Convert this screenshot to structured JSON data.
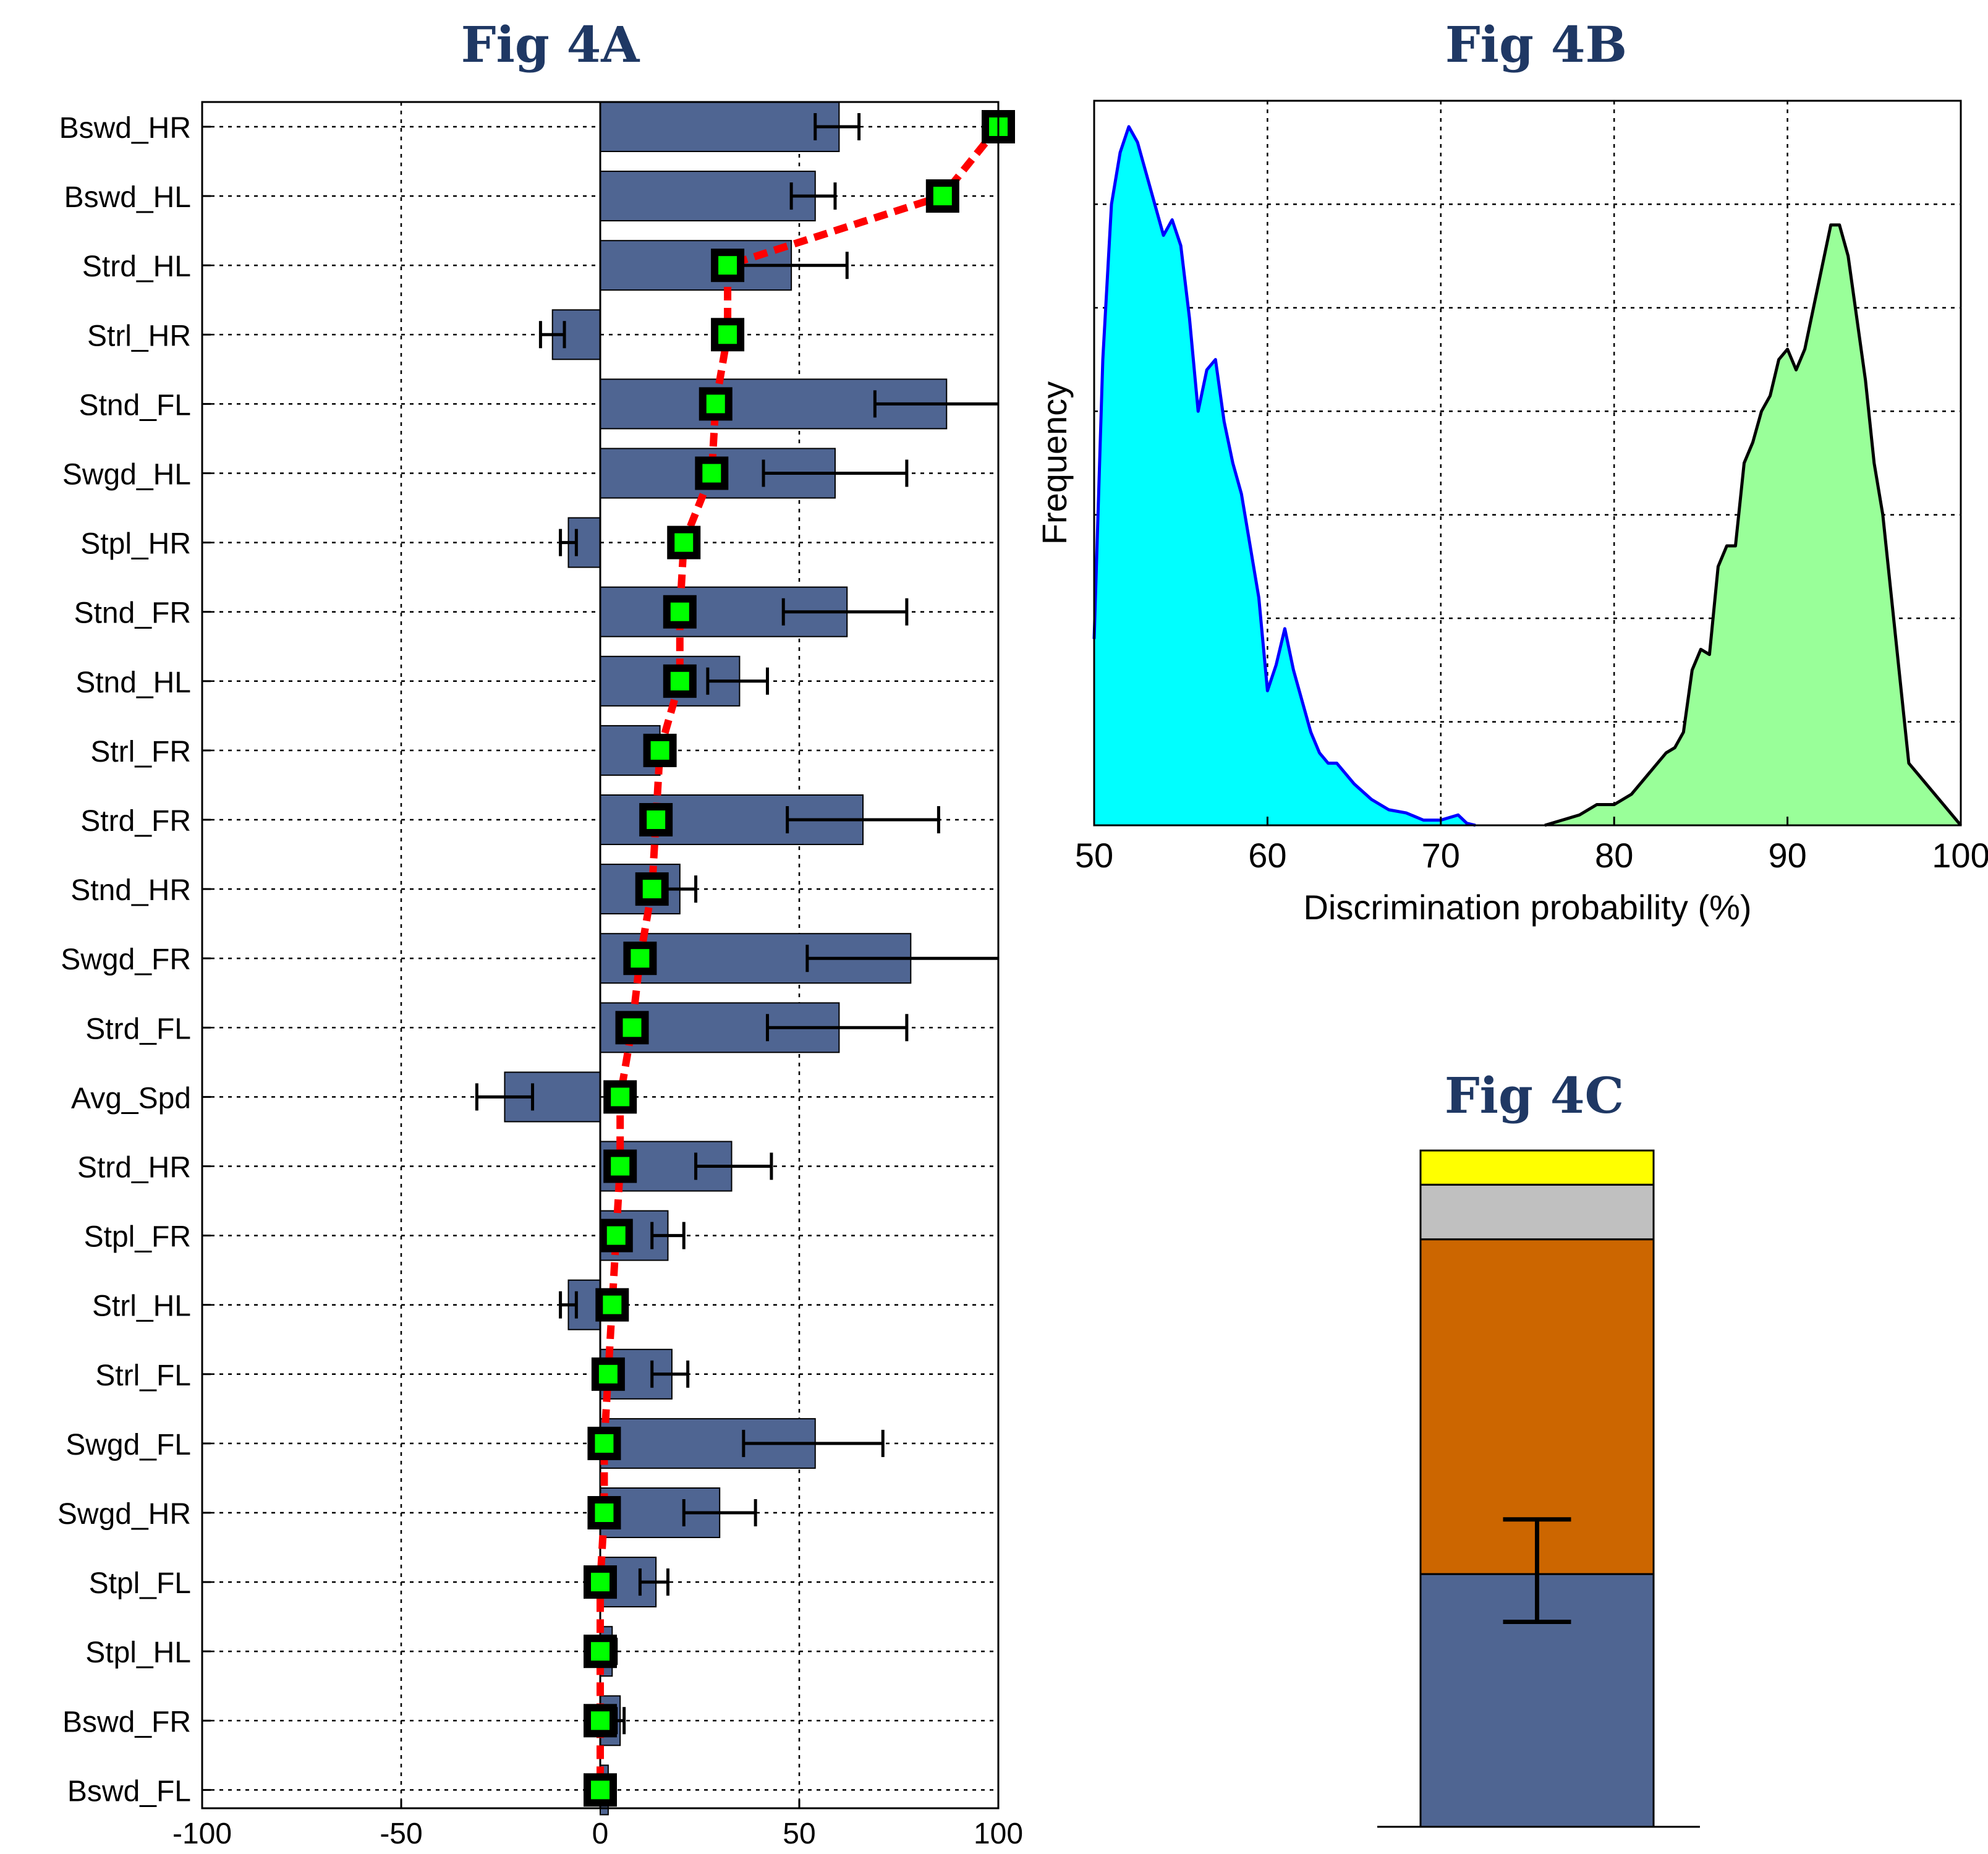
{
  "titles": {
    "a": "Fig 4A",
    "b": "Fig 4B",
    "c": "Fig 4C"
  },
  "colors": {
    "title": "#1f3864",
    "bar": "#4f6592",
    "marker_fill": "#00ff00",
    "marker_edge": "#000000",
    "dashed_line": "#ff0000",
    "area_cyan": "#00ffff",
    "area_cyan_edge": "#0000ff",
    "area_green": "#99ff99",
    "area_green_edge": "#000000",
    "stack_blue": "#4f6592",
    "stack_orange": "#cc6600",
    "stack_gray": "#c0c0c0",
    "stack_yellow": "#ffff00"
  },
  "chart_data": [
    {
      "id": "fig4a",
      "type": "bar",
      "orientation": "horizontal",
      "title": "Fig 4A",
      "xlim": [
        -100,
        100
      ],
      "xticks": [
        -100,
        -50,
        0,
        50,
        100
      ],
      "grid": true,
      "categories": [
        "Bswd_HR",
        "Bswd_HL",
        "Strd_HL",
        "Strl_HR",
        "Stnd_FL",
        "Swgd_HL",
        "Stpl_HR",
        "Stnd_FR",
        "Stnd_HL",
        "Strl_FR",
        "Strd_FR",
        "Stnd_HR",
        "Swgd_FR",
        "Strd_FL",
        "Avg_Spd",
        "Strd_HR",
        "Stpl_FR",
        "Strl_HL",
        "Strl_FL",
        "Swgd_FL",
        "Swgd_HR",
        "Stpl_FL",
        "Stpl_HL",
        "Bswd_FR",
        "Bswd_FL"
      ],
      "series": [
        {
          "type": "bar",
          "values": [
            60,
            54,
            48,
            -12,
            87,
            59,
            -8,
            62,
            35,
            15,
            66,
            20,
            78,
            60,
            -24,
            33,
            17,
            -8,
            18,
            54,
            30,
            14,
            3,
            5,
            2
          ],
          "error_low": [
            54,
            48,
            33,
            -15,
            69,
            41,
            -10,
            46,
            27,
            12,
            47,
            16,
            52,
            42,
            -31,
            24,
            13,
            -10,
            13,
            36,
            21,
            10,
            2,
            4,
            1
          ],
          "error_high": [
            65,
            59,
            62,
            -9,
            100,
            77,
            -6,
            77,
            42,
            18,
            85,
            24,
            100,
            77,
            -17,
            43,
            21,
            -6,
            22,
            71,
            39,
            17,
            4,
            6,
            3
          ]
        },
        {
          "type": "line",
          "style": "dashed",
          "marker": "square",
          "values": [
            100,
            86,
            32,
            32,
            29,
            28,
            21,
            20,
            20,
            15,
            14,
            13,
            10,
            8,
            5,
            5,
            4,
            3,
            2,
            1,
            1,
            0,
            0,
            0,
            0
          ]
        }
      ]
    },
    {
      "id": "fig4b",
      "type": "area",
      "title": "Fig 4B",
      "xlabel": "Discrimination probability (%)",
      "ylabel": "Frequency",
      "xlim": [
        50,
        100
      ],
      "xticks": [
        50,
        60,
        70,
        80,
        90,
        100
      ],
      "ylim": [
        0,
        7
      ],
      "grid": true,
      "series": [
        {
          "x": [
            50,
            50.5,
            51,
            51.5,
            52,
            52.5,
            53,
            53.5,
            54,
            54.5,
            55,
            55.5,
            56,
            56.5,
            57,
            57.5,
            58,
            58.5,
            59,
            59.5,
            60,
            60.5,
            61,
            61.5,
            62,
            62.5,
            63,
            63.5,
            64,
            65,
            66,
            67,
            68,
            69,
            70,
            71,
            71.5,
            72
          ],
          "values": [
            1.8,
            4.5,
            6.0,
            6.5,
            6.75,
            6.6,
            6.3,
            6.0,
            5.7,
            5.85,
            5.6,
            4.9,
            4.0,
            4.4,
            4.5,
            3.9,
            3.5,
            3.2,
            2.7,
            2.2,
            1.3,
            1.55,
            1.9,
            1.5,
            1.2,
            0.9,
            0.7,
            0.6,
            0.6,
            0.4,
            0.25,
            0.15,
            0.12,
            0.05,
            0.05,
            0.1,
            0.02,
            0.0
          ]
        },
        {
          "x": [
            76,
            77,
            78,
            79,
            80,
            81,
            82,
            83,
            83.5,
            84,
            84.5,
            85,
            85.5,
            86,
            86.5,
            87,
            87.5,
            88,
            88.5,
            89,
            89.5,
            90,
            90.5,
            91,
            91.5,
            92,
            92.5,
            93,
            93.5,
            94,
            94.5,
            95,
            95.5,
            96,
            96.5,
            97,
            97.5,
            98,
            98.5,
            99,
            99.5,
            100
          ],
          "values": [
            0.0,
            0.05,
            0.1,
            0.2,
            0.2,
            0.3,
            0.5,
            0.7,
            0.75,
            0.9,
            1.5,
            1.7,
            1.65,
            2.5,
            2.7,
            2.7,
            3.5,
            3.7,
            4.0,
            4.15,
            4.5,
            4.6,
            4.4,
            4.6,
            5.0,
            5.4,
            5.8,
            5.8,
            5.5,
            4.9,
            4.3,
            3.5,
            3.0,
            2.2,
            1.4,
            0.6,
            0.5,
            0.4,
            0.3,
            0.2,
            0.1,
            0.0
          ]
        }
      ]
    },
    {
      "id": "fig4c",
      "type": "bar",
      "stacked": true,
      "title": "Fig 4C",
      "ylim": [
        0,
        100
      ],
      "segments": [
        37,
        49,
        8,
        5
      ],
      "error_low": 30,
      "error_high": 45
    }
  ]
}
